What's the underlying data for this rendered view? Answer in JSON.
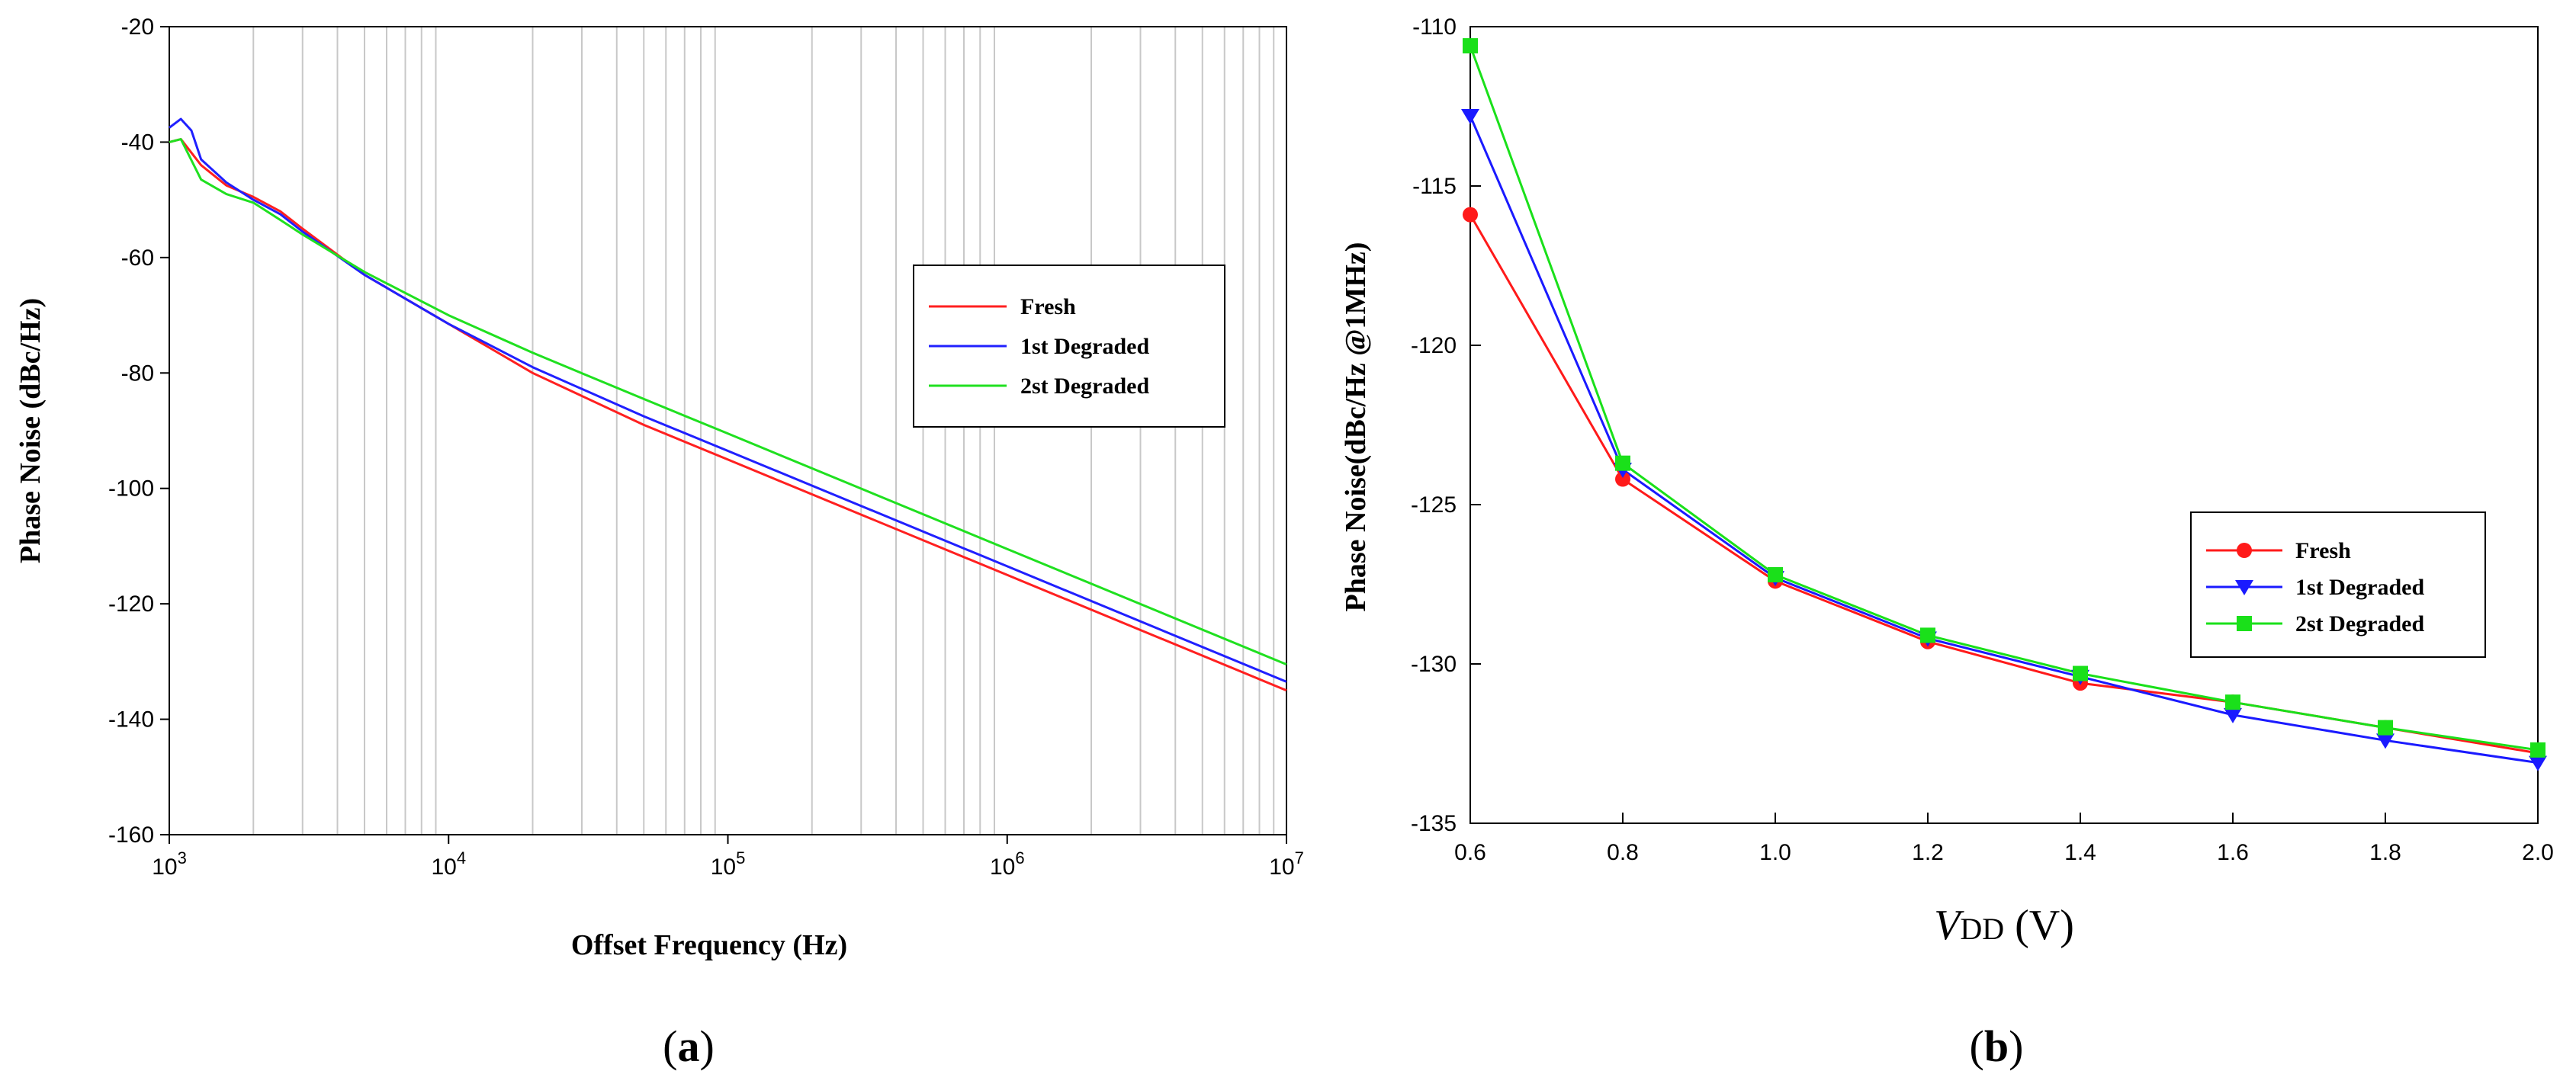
{
  "chart_data": [
    {
      "type": "line",
      "caption": {
        "open": "(",
        "letter": "a",
        "close": ")"
      },
      "title": "",
      "xlabel": "Offset Frequency (Hz)",
      "ylabel": "Phase Noise (dBc/Hz)",
      "xscale": "log",
      "xlim": [
        1000,
        10000000
      ],
      "ylim": [
        -160,
        -20
      ],
      "xticks": [
        1000,
        10000,
        100000,
        1000000,
        10000000
      ],
      "xtick_labels": [
        {
          "base": "10",
          "exp": "3"
        },
        {
          "base": "10",
          "exp": "4"
        },
        {
          "base": "10",
          "exp": "5"
        },
        {
          "base": "10",
          "exp": "6"
        },
        {
          "base": "10",
          "exp": "7"
        }
      ],
      "yticks": [
        -160,
        -140,
        -120,
        -100,
        -80,
        -60,
        -40,
        -20
      ],
      "ytick_labels": [
        "-160",
        "-140",
        "-120",
        "-100",
        "-80",
        "-60",
        "-40",
        "-20"
      ],
      "grid": {
        "x_minor": true,
        "y": false
      },
      "legend_position": "center-right",
      "series": [
        {
          "name": "Fresh",
          "color": "#ff2020",
          "x": [
            1000,
            1100,
            1300,
            1600,
            2000,
            2500,
            3000,
            5000,
            10000,
            20000,
            50000,
            100000,
            1000000,
            10000000
          ],
          "y": [
            -40,
            -39.5,
            -44,
            -47.5,
            -49.5,
            -52,
            -55,
            -63,
            -71.5,
            -80,
            -89,
            -95,
            -115,
            -135
          ]
        },
        {
          "name": "1st Degraded",
          "color": "#2020ff",
          "x": [
            1000,
            1100,
            1200,
            1300,
            1600,
            2000,
            2500,
            3000,
            5000,
            10000,
            20000,
            50000,
            100000,
            1000000,
            10000000
          ],
          "y": [
            -37.5,
            -36,
            -38,
            -43,
            -47,
            -50,
            -52.5,
            -55.5,
            -63,
            -71.5,
            -79,
            -87.5,
            -93.5,
            -113.5,
            -133.5
          ]
        },
        {
          "name": "2st Degraded",
          "color": "#20e020",
          "x": [
            1000,
            1100,
            1300,
            1600,
            2000,
            2500,
            3000,
            5000,
            10000,
            20000,
            50000,
            100000,
            1000000,
            10000000
          ],
          "y": [
            -40,
            -39.5,
            -46.5,
            -49,
            -50.5,
            -53.5,
            -56,
            -62.5,
            -70,
            -76.5,
            -84.5,
            -90.5,
            -110.5,
            -130.5
          ]
        }
      ]
    },
    {
      "type": "line",
      "caption": {
        "open": "(",
        "letter": "b",
        "close": ")"
      },
      "title": "",
      "xlabel_main": "V",
      "xlabel_sub": "DD",
      "xlabel_unit": " (V)",
      "ylabel": "Phase Noise(dBc/Hz @1MHz)",
      "xlim": [
        0.6,
        2.0
      ],
      "ylim": [
        -135,
        -110
      ],
      "xticks": [
        0.6,
        0.8,
        1.0,
        1.2,
        1.4,
        1.6,
        1.8,
        2.0
      ],
      "xtick_labels": [
        "0.6",
        "0.8",
        "1.0",
        "1.2",
        "1.4",
        "1.6",
        "1.8",
        "2.0"
      ],
      "yticks": [
        -135,
        -130,
        -125,
        -120,
        -115,
        -110
      ],
      "ytick_labels": [
        "-135",
        "-130",
        "-125",
        "-120",
        "-115",
        "-110"
      ],
      "grid": false,
      "legend_position": "center-right",
      "series": [
        {
          "name": "Fresh",
          "color": "#ff1a1a",
          "marker": "circle",
          "x": [
            0.6,
            0.8,
            1.0,
            1.2,
            1.4,
            1.6,
            1.8,
            2.0
          ],
          "y": [
            -115.9,
            -124.2,
            -127.4,
            -129.3,
            -130.6,
            -131.2,
            -132.0,
            -132.8
          ]
        },
        {
          "name": "1st Degraded",
          "color": "#1a1aff",
          "marker": "triangle-down",
          "x": [
            0.6,
            0.8,
            1.0,
            1.2,
            1.4,
            1.6,
            1.8,
            2.0
          ],
          "y": [
            -112.8,
            -123.9,
            -127.3,
            -129.2,
            -130.4,
            -131.6,
            -132.4,
            -133.1
          ]
        },
        {
          "name": "2st Degraded",
          "color": "#1ae01a",
          "marker": "square",
          "x": [
            0.6,
            0.8,
            1.0,
            1.2,
            1.4,
            1.6,
            1.8,
            2.0
          ],
          "y": [
            -110.6,
            -123.7,
            -127.2,
            -129.1,
            -130.3,
            -131.2,
            -132.0,
            -132.7
          ]
        }
      ]
    }
  ]
}
